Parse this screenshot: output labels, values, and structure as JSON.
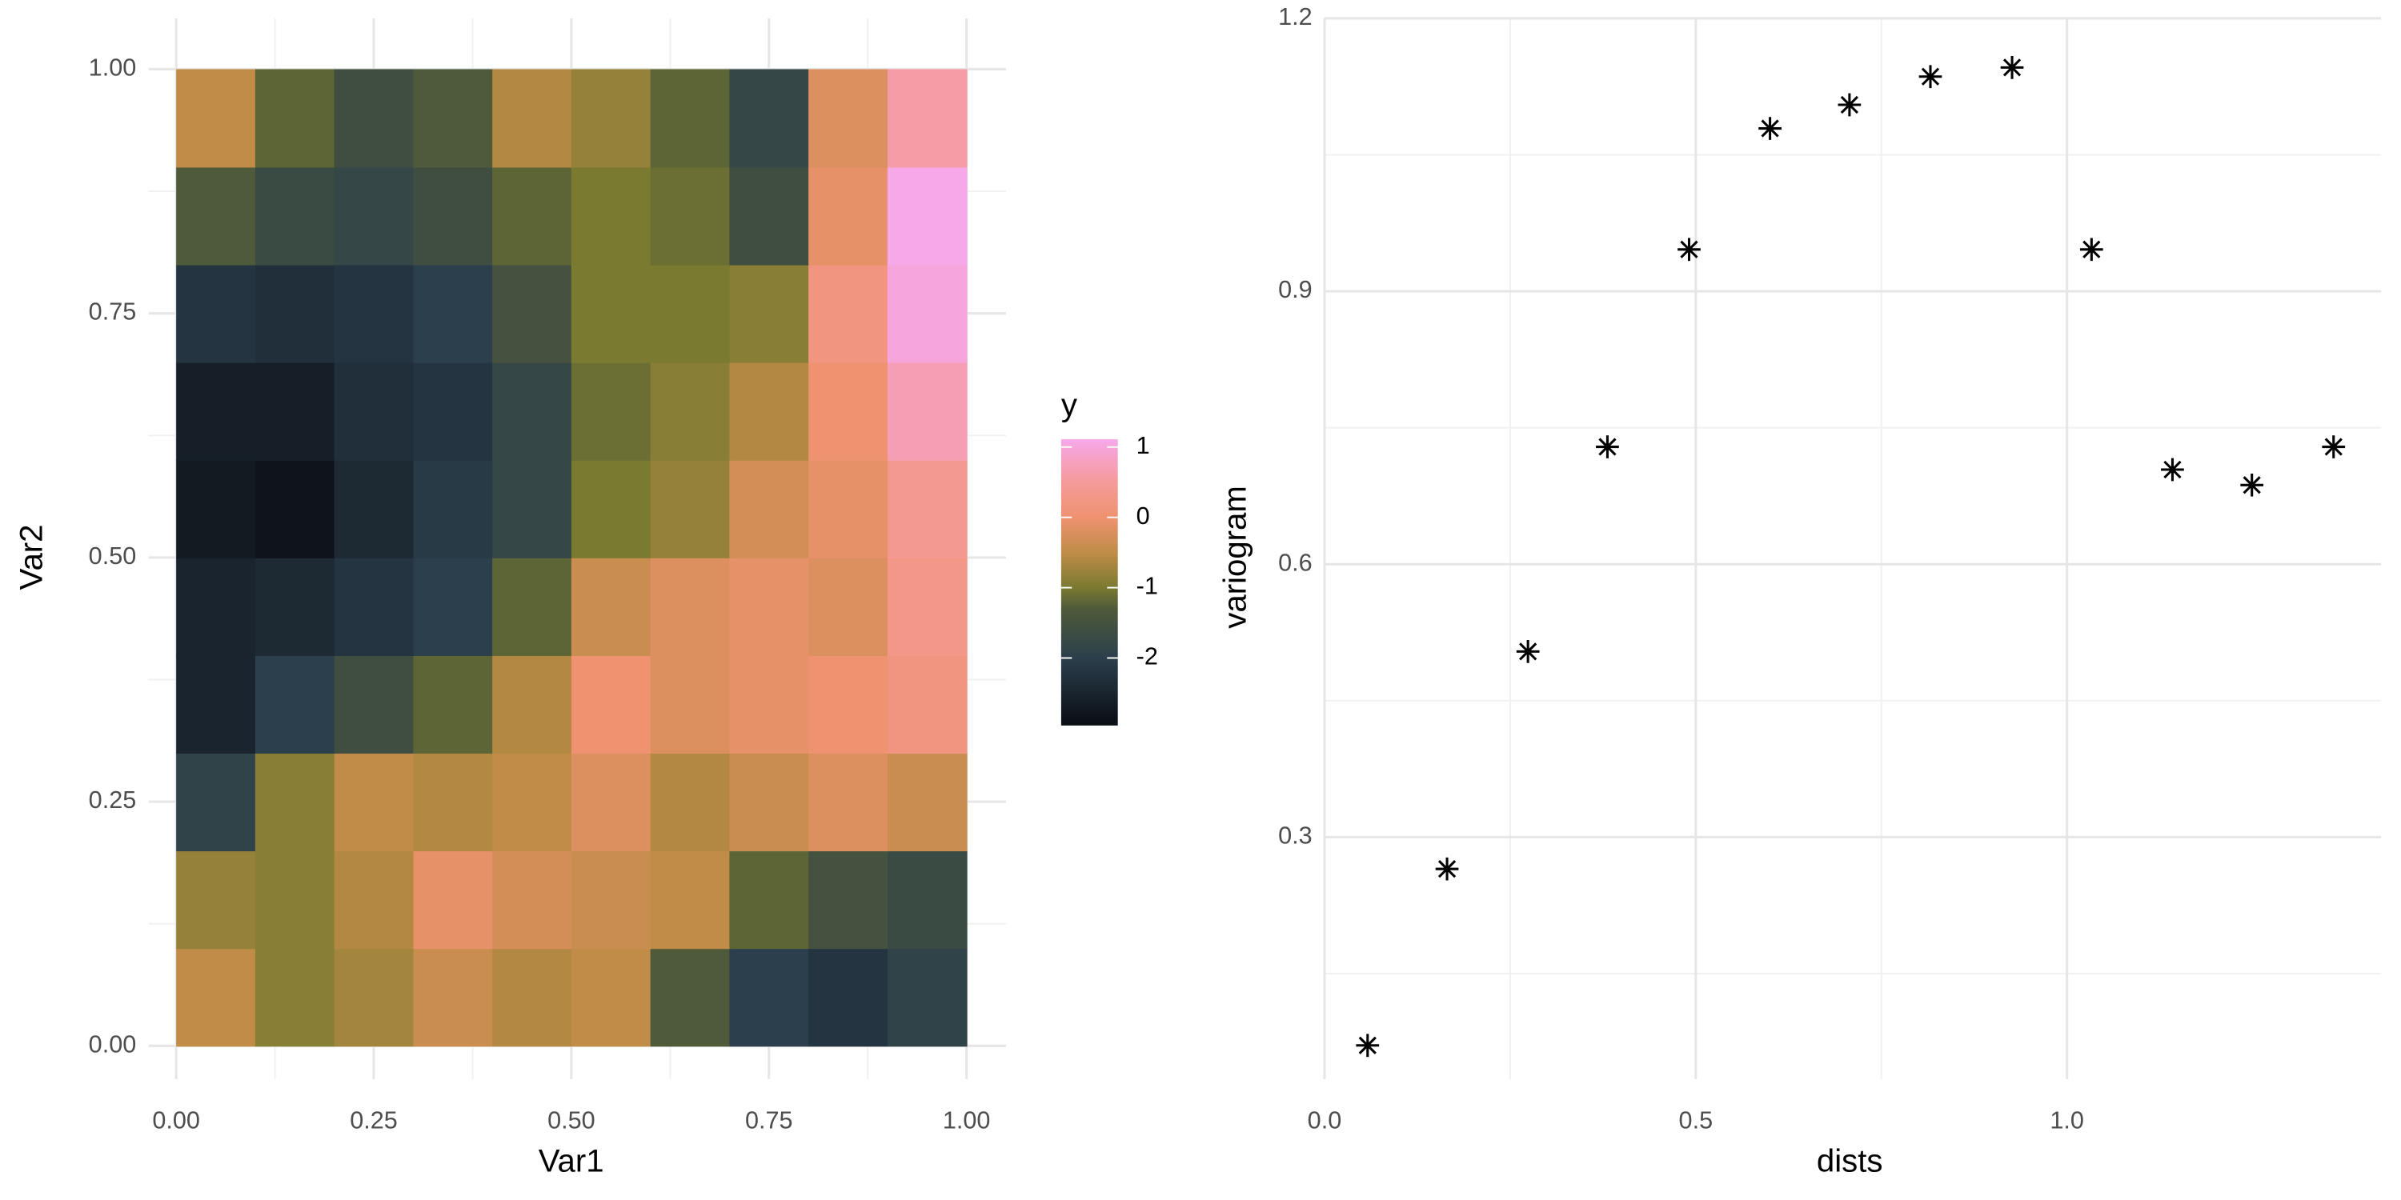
{
  "chart_data": [
    {
      "type": "heatmap",
      "xlabel": "Var1",
      "ylabel": "Var2",
      "x": [
        0.05,
        0.15,
        0.25,
        0.35,
        0.45,
        0.55,
        0.65,
        0.75,
        0.85,
        0.95
      ],
      "y": [
        0.05,
        0.15,
        0.25,
        0.35,
        0.45,
        0.55,
        0.65,
        0.75,
        0.85,
        0.95
      ],
      "z": [
        [
          -0.5,
          -0.9,
          -0.7,
          -0.4,
          -0.6,
          -0.5,
          -1.3,
          -2.0,
          -2.2,
          -1.9
        ],
        [
          -0.8,
          -0.9,
          -0.6,
          -0.1,
          -0.3,
          -0.4,
          -0.5,
          -1.2,
          -1.5,
          -1.7
        ],
        [
          -1.9,
          -0.9,
          -0.5,
          -0.6,
          -0.5,
          -0.2,
          -0.6,
          -0.4,
          -0.2,
          -0.4
        ],
        [
          -2.5,
          -2.0,
          -1.6,
          -1.2,
          -0.6,
          0.0,
          -0.2,
          -0.1,
          0.0,
          0.2
        ],
        [
          -2.5,
          -2.4,
          -2.2,
          -2.0,
          -1.2,
          -0.4,
          -0.2,
          -0.1,
          -0.2,
          0.3
        ],
        [
          -2.7,
          -2.8,
          -2.4,
          -2.1,
          -1.8,
          -1.0,
          -0.8,
          -0.3,
          -0.1,
          0.4
        ],
        [
          -2.6,
          -2.6,
          -2.3,
          -2.2,
          -1.8,
          -1.1,
          -0.9,
          -0.6,
          0.0,
          0.7
        ],
        [
          -2.2,
          -2.3,
          -2.2,
          -2.0,
          -1.5,
          -1.0,
          -1.0,
          -0.9,
          0.2,
          1.0
        ],
        [
          -1.3,
          -1.7,
          -1.8,
          -1.6,
          -1.2,
          -1.0,
          -1.1,
          -1.6,
          -0.1,
          1.1
        ],
        [
          -0.5,
          -1.2,
          -1.6,
          -1.3,
          -0.6,
          -0.8,
          -1.2,
          -1.8,
          -0.2,
          0.6
        ]
      ],
      "xlim": [
        -0.035,
        1.05
      ],
      "ylim": [
        -0.034,
        1.052
      ],
      "xticks": [
        {
          "value": 0,
          "label": "0.00"
        },
        {
          "value": 0.25,
          "label": "0.25"
        },
        {
          "value": 0.5,
          "label": "0.50"
        },
        {
          "value": 0.75,
          "label": "0.75"
        },
        {
          "value": 1,
          "label": "1.00"
        }
      ],
      "yticks": [
        {
          "value": 0,
          "label": "0.00"
        },
        {
          "value": 0.25,
          "label": "0.25"
        },
        {
          "value": 0.5,
          "label": "0.50"
        },
        {
          "value": 0.75,
          "label": "0.75"
        },
        {
          "value": 1,
          "label": "1.00"
        }
      ],
      "grid": true,
      "colorscale": [
        [
          -2.9,
          "#0b0f16"
        ],
        [
          -2,
          "#2b3f4c"
        ],
        [
          -1.3,
          "#4f5a3a"
        ],
        [
          -1,
          "#7a7a30"
        ],
        [
          -0.5,
          "#c08c48"
        ],
        [
          0,
          "#ef9270"
        ],
        [
          0.5,
          "#f59a9a"
        ],
        [
          1.1,
          "#f7a8e8"
        ]
      ],
      "colorbar": {
        "title": "y",
        "ticks": [
          1,
          0,
          -1,
          -2
        ],
        "lim": [
          -2.96,
          1.11
        ]
      }
    },
    {
      "type": "scatter",
      "xlabel": "dists",
      "ylabel": "variogram",
      "color": "#000000",
      "marker": "asterisk",
      "x": [
        0.058,
        0.165,
        0.274,
        0.381,
        0.491,
        0.6,
        0.707,
        0.816,
        0.926,
        1.033,
        1.142,
        1.249,
        1.359
      ],
      "values": [
        0.071,
        0.265,
        0.504,
        0.729,
        0.946,
        1.079,
        1.105,
        1.136,
        1.146,
        0.946,
        0.704,
        0.687,
        0.729
      ],
      "xlim": [
        0,
        1.423
      ],
      "ylim": [
        0.034,
        1.2
      ],
      "xticks": [
        {
          "value": 0,
          "label": "0.0"
        },
        {
          "value": 0.5,
          "label": "0.5"
        },
        {
          "value": 1,
          "label": "1.0"
        }
      ],
      "yticks": [
        0.3,
        0.6,
        0.9,
        1.2
      ],
      "grid": true
    }
  ]
}
